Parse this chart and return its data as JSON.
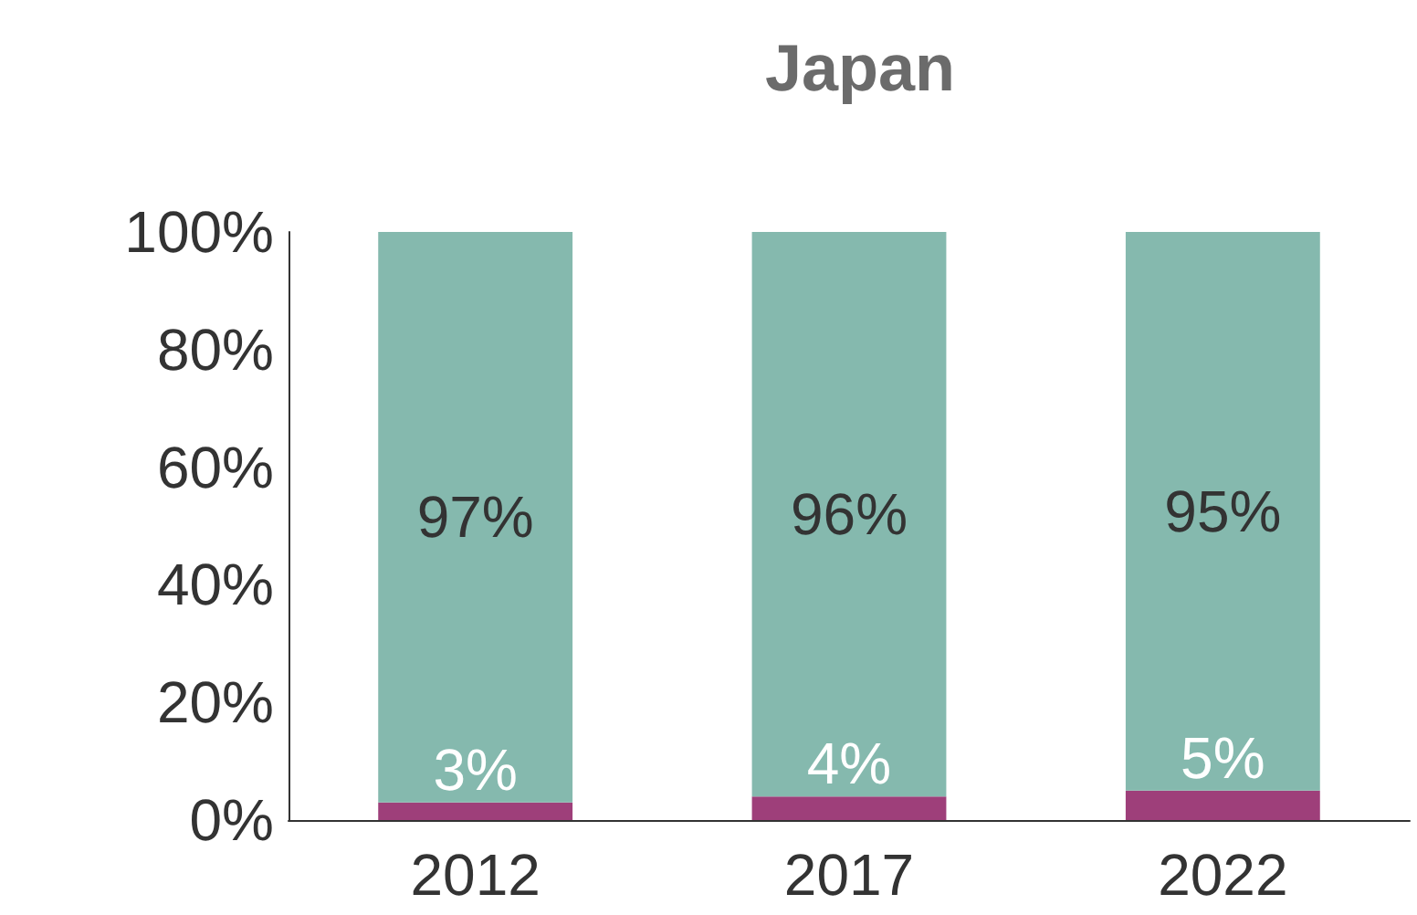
{
  "chart_data": {
    "type": "bar",
    "title": "Japan",
    "categories": [
      "2012",
      "2017",
      "2022"
    ],
    "stacked": true,
    "series": [
      {
        "color": "#9e3f7a",
        "values": [
          3,
          4,
          5
        ],
        "value_labels": [
          "3%",
          "4%",
          "5%"
        ]
      },
      {
        "color": "#85b9ae",
        "values": [
          97,
          96,
          95
        ],
        "value_labels": [
          "97%",
          "96%",
          "95%"
        ]
      }
    ],
    "ylim": [
      0,
      100
    ],
    "yticks": [
      {
        "value": 0,
        "label": "0%"
      },
      {
        "value": 20,
        "label": "20%"
      },
      {
        "value": 40,
        "label": "40%"
      },
      {
        "value": 60,
        "label": "60%"
      },
      {
        "value": 80,
        "label": "80%"
      },
      {
        "value": 100,
        "label": "100%"
      }
    ],
    "grid": false
  }
}
